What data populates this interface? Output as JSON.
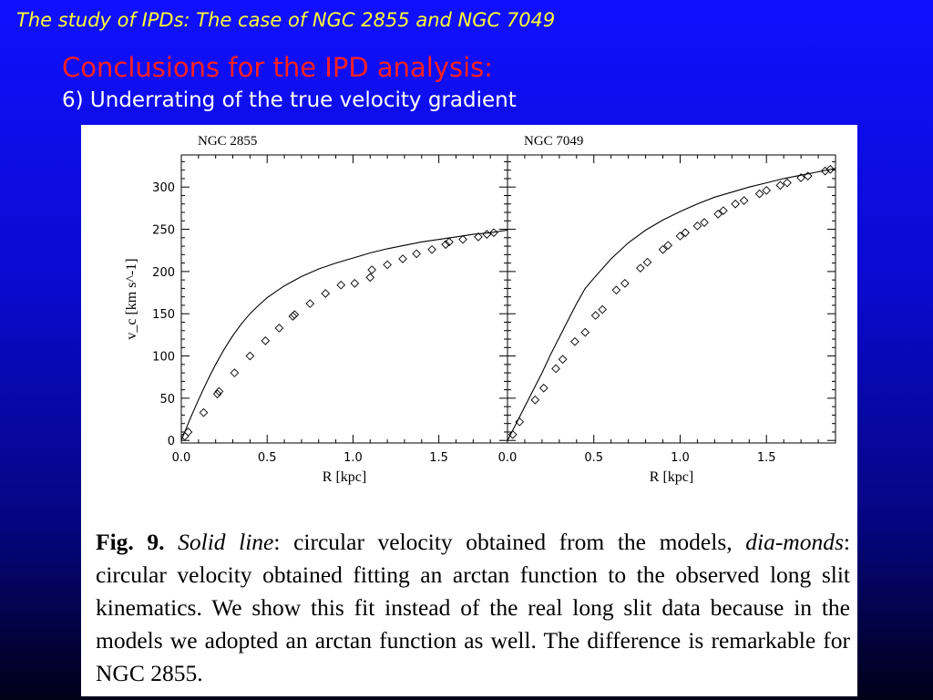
{
  "slide": {
    "title": "The study of IPDs: The case of NGC 2855 and NGC 7049",
    "heading": "Conclusions for the IPD analysis:",
    "subheading": "6) Underrating of the true velocity gradient"
  },
  "caption": {
    "fig_label": "Fig. 9.",
    "italic_1": "Solid line",
    "text_1": ": circular velocity obtained from the models, ",
    "italic_2": "dia-monds",
    "text_2": ": circular velocity obtained fitting an arctan function to the observed long slit kinematics. We show this fit instead of the real long slit data because in the models we adopted an arctan function as well. The difference is remarkable for NGC 2855."
  },
  "colors": {
    "title": "#ffff33",
    "heading": "#ff2020",
    "subheading": "#ffffff",
    "background_top": "#1010ff",
    "background_bottom": "#000018"
  },
  "chart_data": [
    {
      "type": "line",
      "title": "NGC 2855",
      "xlabel": "R [kpc]",
      "ylabel": "v_c [km s^-1]",
      "xlim": [
        0.0,
        1.9
      ],
      "ylim": [
        -3,
        338
      ],
      "x_ticks": [
        "0.0",
        "0.5",
        "1.0",
        "1.5"
      ],
      "y_ticks": [
        "0",
        "50",
        "100",
        "150",
        "200",
        "250",
        "300"
      ],
      "series": [
        {
          "style": "solid-line",
          "x": [
            0.0,
            0.05,
            0.1,
            0.15,
            0.2,
            0.25,
            0.3,
            0.35,
            0.4,
            0.45,
            0.5,
            0.6,
            0.7,
            0.8,
            0.9,
            1.0,
            1.1,
            1.2,
            1.3,
            1.4,
            1.5,
            1.6,
            1.7,
            1.8,
            1.9
          ],
          "y": [
            0,
            25,
            48,
            70,
            90,
            108,
            124,
            138,
            150,
            160,
            169,
            183,
            194,
            203,
            210,
            216,
            222,
            227,
            231,
            235,
            238,
            241,
            244,
            246,
            249
          ]
        },
        {
          "style": "diamond",
          "x": [
            0.02,
            0.04,
            0.13,
            0.21,
            0.22,
            0.31,
            0.4,
            0.49,
            0.57,
            0.65,
            0.66,
            0.75,
            0.84,
            0.93,
            1.01,
            1.1,
            1.11,
            1.2,
            1.29,
            1.37,
            1.46,
            1.54,
            1.56,
            1.64,
            1.73,
            1.78,
            1.82
          ],
          "y": [
            5,
            10,
            33,
            55,
            58,
            80,
            100,
            118,
            133,
            147,
            149,
            162,
            174,
            184,
            186,
            193,
            202,
            208,
            215,
            221,
            226,
            232,
            235,
            238,
            241,
            244,
            246
          ]
        }
      ]
    },
    {
      "type": "line",
      "title": "NGC 7049",
      "xlabel": "R [kpc]",
      "xlim": [
        0.0,
        1.9
      ],
      "ylim": [
        -3,
        338
      ],
      "x_ticks": [
        "0.0",
        "0.5",
        "1.0",
        "1.5"
      ],
      "series": [
        {
          "style": "solid-line",
          "x": [
            0.0,
            0.05,
            0.1,
            0.15,
            0.2,
            0.25,
            0.3,
            0.35,
            0.4,
            0.45,
            0.5,
            0.6,
            0.7,
            0.8,
            0.9,
            1.0,
            1.1,
            1.2,
            1.3,
            1.4,
            1.5,
            1.6,
            1.7,
            1.8,
            1.9
          ],
          "y": [
            0,
            20,
            40,
            60,
            80,
            102,
            122,
            142,
            162,
            180,
            192,
            215,
            234,
            249,
            261,
            271,
            280,
            288,
            294,
            300,
            305,
            310,
            314,
            318,
            322
          ]
        },
        {
          "style": "diamond",
          "x": [
            0.03,
            0.07,
            0.16,
            0.21,
            0.28,
            0.32,
            0.39,
            0.45,
            0.51,
            0.55,
            0.63,
            0.68,
            0.77,
            0.81,
            0.9,
            0.93,
            1.0,
            1.03,
            1.1,
            1.14,
            1.22,
            1.25,
            1.32,
            1.37,
            1.46,
            1.5,
            1.58,
            1.62,
            1.7,
            1.74,
            1.84,
            1.87
          ],
          "y": [
            7,
            22,
            48,
            62,
            85,
            96,
            117,
            128,
            148,
            155,
            178,
            186,
            204,
            211,
            226,
            231,
            242,
            246,
            254,
            258,
            268,
            272,
            280,
            284,
            292,
            296,
            302,
            305,
            311,
            313,
            319,
            321
          ]
        }
      ]
    }
  ]
}
